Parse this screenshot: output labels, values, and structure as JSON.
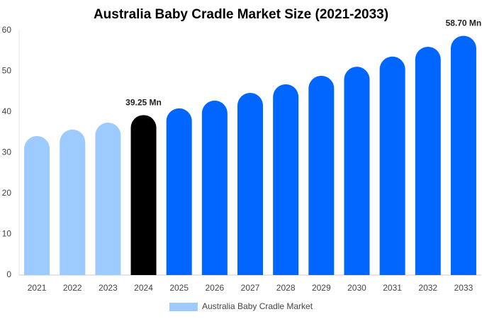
{
  "chart_data": {
    "type": "bar",
    "title": "Australia Baby Cradle Market Size (2021-2033)",
    "categories": [
      "2021",
      "2022",
      "2023",
      "2024",
      "2025",
      "2026",
      "2027",
      "2028",
      "2029",
      "2030",
      "2031",
      "2032",
      "2033"
    ],
    "series": [
      {
        "name": "Australia Baby Cradle Market",
        "color": "#9ecbff",
        "values": [
          34.1,
          35.7,
          37.4,
          39.25,
          40.9,
          42.8,
          44.7,
          46.8,
          48.9,
          51.1,
          53.6,
          56.0,
          58.7
        ],
        "value_labels": [
          null,
          null,
          null,
          "39.25 Mn",
          null,
          null,
          null,
          null,
          null,
          null,
          null,
          null,
          "58.70 Mn"
        ],
        "colors": [
          "#9ecbff",
          "#9ecbff",
          "#9ecbff",
          "#000000",
          "#0066ff",
          "#0066ff",
          "#0066ff",
          "#0066ff",
          "#0066ff",
          "#0066ff",
          "#0066ff",
          "#0066ff",
          "#0066ff"
        ]
      }
    ],
    "ylim": [
      0,
      60
    ],
    "yticks": [
      0,
      10,
      20,
      30,
      40,
      50,
      60
    ],
    "grid": false
  }
}
